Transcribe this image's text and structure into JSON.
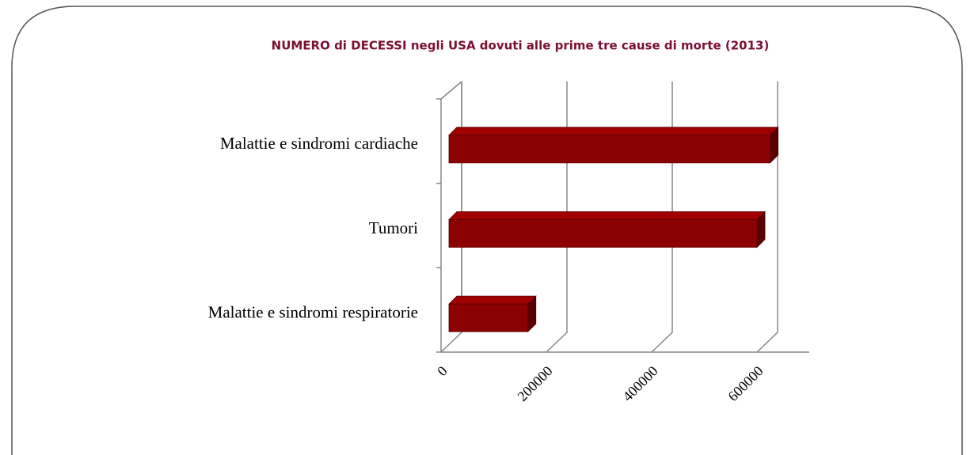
{
  "chart_data": {
    "type": "bar",
    "orientation": "horizontal",
    "title": "NUMERO di DECESSI negli USA dovuti alle prime tre cause di morte (2013)",
    "categories": [
      "Malattie e sindromi cardiache",
      "Tumori",
      "Malattie e sindromi respiratorie"
    ],
    "values": [
      610000,
      585000,
      150000
    ],
    "color": "#8b0000",
    "xlim": [
      0,
      700000
    ],
    "xticks": [
      0,
      200000,
      400000,
      600000
    ],
    "grid": true
  }
}
